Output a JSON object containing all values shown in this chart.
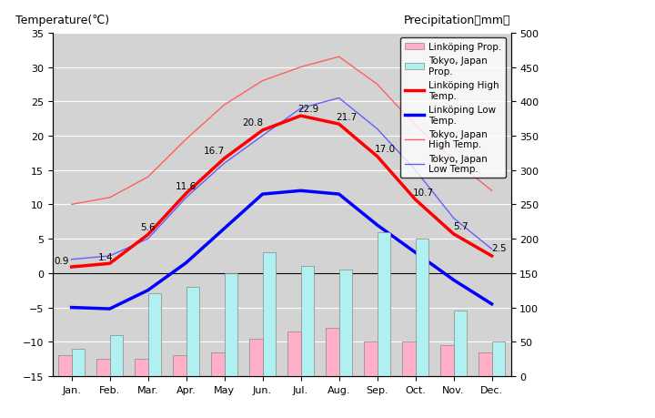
{
  "months": [
    "Jan.",
    "Feb.",
    "Mar.",
    "Apr.",
    "May",
    "Jun.",
    "Jul.",
    "Aug.",
    "Sep.",
    "Oct.",
    "Nov.",
    "Dec."
  ],
  "linkoping_high": [
    0.9,
    1.4,
    5.6,
    11.6,
    16.7,
    20.8,
    22.9,
    21.7,
    17.0,
    10.7,
    5.7,
    2.5
  ],
  "linkoping_low": [
    -5.0,
    -5.2,
    -2.5,
    1.5,
    6.5,
    11.5,
    12.0,
    11.5,
    7.0,
    3.0,
    -1.0,
    -4.5
  ],
  "tokyo_high": [
    10.0,
    11.0,
    14.0,
    19.5,
    24.5,
    28.0,
    30.0,
    31.5,
    27.5,
    21.5,
    16.5,
    12.0
  ],
  "tokyo_low": [
    2.0,
    2.5,
    5.0,
    11.0,
    16.0,
    20.0,
    24.0,
    25.5,
    21.0,
    15.0,
    8.0,
    3.5
  ],
  "tokyo_prcp_mm": [
    40,
    60,
    120,
    130,
    150,
    180,
    160,
    155,
    210,
    200,
    95,
    50
  ],
  "linkoping_prcp_mm": [
    30,
    25,
    25,
    30,
    35,
    55,
    65,
    70,
    50,
    50,
    45,
    35
  ],
  "temp_ylim": [
    -15,
    35
  ],
  "prcp_ylim": [
    0,
    500
  ],
  "temp_yticks": [
    -15,
    -10,
    -5,
    0,
    5,
    10,
    15,
    20,
    25,
    30,
    35
  ],
  "prcp_yticks": [
    0,
    50,
    100,
    150,
    200,
    250,
    300,
    350,
    400,
    450,
    500
  ],
  "bg_color": "#d3d3d3",
  "bar_color_linkoping": "#ffb0c8",
  "bar_color_tokyo": "#b0f0f0",
  "line_color_red_thick": "#ff0000",
  "line_color_blue_thick": "#0000ff",
  "line_color_red_thin": "#ff6060",
  "line_color_blue_thin": "#6060ff",
  "title_left": "Temperature(℃)",
  "title_right": "Precipitation（mm）",
  "legend_labels": [
    "Linköping Prop.",
    "Tokyo, Japan\nProp.",
    "Linköping High\nTemp.",
    "Linköping Low\nTemp.",
    "Tokyo, Japan\nHigh Temp.",
    "Tokyo, Japan\nLow Temp."
  ]
}
